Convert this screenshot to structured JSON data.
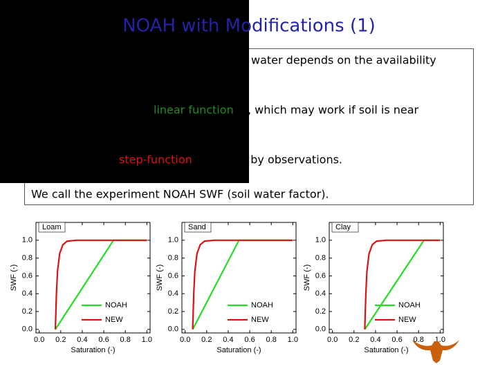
{
  "slide": {
    "title": "NOAH with Modifications (1)",
    "text": [
      {
        "text": "water depends on the availability",
        "color": "#000000"
      },
      {
        "text": "linear function",
        "color": "#1e8c1e"
      },
      {
        "text": ", which may work if soil is near",
        "color": "#000000"
      },
      {
        "text": "step-function",
        "color": "#e01010"
      },
      {
        "text": "d by observations.",
        "color": "#000000"
      },
      {
        "text": "We call the experiment NOAH SWF (soil water factor).",
        "color": "#000000"
      }
    ]
  },
  "chart_data": [
    {
      "type": "line",
      "label": "Loam",
      "xlabel": "Saturation (-)",
      "ylabel": "SWF (-)",
      "xlim": [
        -0.03,
        1.03
      ],
      "ylim": [
        -0.04,
        1.2
      ],
      "xticks": [
        {
          "value": 0,
          "label": "0.0"
        },
        {
          "value": 0.2,
          "label": "0.2"
        },
        {
          "value": 0.4,
          "label": "0.4"
        },
        {
          "value": 0.6,
          "label": "0.6"
        },
        {
          "value": 0.8,
          "label": "0.8"
        },
        {
          "value": 1,
          "label": "1.0"
        }
      ],
      "yticks": [
        {
          "value": 0,
          "label": "0.0"
        },
        {
          "value": 0.2,
          "label": "0.2"
        },
        {
          "value": 0.4,
          "label": "0.4"
        },
        {
          "value": 0.6,
          "label": "0.6"
        },
        {
          "value": 0.8,
          "label": "0.8"
        },
        {
          "value": 1,
          "label": "1.0"
        }
      ],
      "legend": "lower right",
      "series": [
        {
          "name": "NOAH",
          "color": "#22dd22",
          "x": [
            0.15,
            0.69,
            1.0
          ],
          "values": [
            0,
            1,
            1
          ]
        },
        {
          "name": "NEW",
          "color": "#dd1111",
          "x": [
            0.15,
            0.16,
            0.17,
            0.19,
            0.22,
            0.26,
            0.35,
            1.0
          ],
          "values": [
            0,
            0.4,
            0.65,
            0.85,
            0.95,
            0.99,
            1,
            1
          ]
        }
      ]
    },
    {
      "type": "line",
      "label": "Sand",
      "xlabel": "Saturation (-)",
      "ylabel": "SWF (-)",
      "xlim": [
        -0.03,
        1.03
      ],
      "ylim": [
        -0.04,
        1.2
      ],
      "xticks": [
        {
          "value": 0,
          "label": "0.0"
        },
        {
          "value": 0.2,
          "label": "0.2"
        },
        {
          "value": 0.4,
          "label": "0.4"
        },
        {
          "value": 0.6,
          "label": "0.6"
        },
        {
          "value": 0.8,
          "label": "0.8"
        },
        {
          "value": 1,
          "label": "1.0"
        }
      ],
      "yticks": [
        {
          "value": 0,
          "label": "0.0"
        },
        {
          "value": 0.2,
          "label": "0.2"
        },
        {
          "value": 0.4,
          "label": "0.4"
        },
        {
          "value": 0.6,
          "label": "0.6"
        },
        {
          "value": 0.8,
          "label": "0.8"
        },
        {
          "value": 1,
          "label": "1.0"
        }
      ],
      "legend": "lower right",
      "series": [
        {
          "name": "NOAH",
          "color": "#22dd22",
          "x": [
            0.07,
            0.5,
            1.0
          ],
          "values": [
            0,
            1,
            1
          ]
        },
        {
          "name": "NEW",
          "color": "#dd1111",
          "x": [
            0.07,
            0.08,
            0.09,
            0.11,
            0.14,
            0.18,
            0.27,
            1.0
          ],
          "values": [
            0,
            0.4,
            0.65,
            0.85,
            0.95,
            0.99,
            1,
            1
          ]
        }
      ]
    },
    {
      "type": "line",
      "label": "Clay",
      "xlabel": "Saturation (-)",
      "ylabel": "SWF (-)",
      "xlim": [
        -0.03,
        1.03
      ],
      "ylim": [
        -0.04,
        1.2
      ],
      "xticks": [
        {
          "value": 0,
          "label": "0.0"
        },
        {
          "value": 0.2,
          "label": "0.2"
        },
        {
          "value": 0.4,
          "label": "0.4"
        },
        {
          "value": 0.6,
          "label": "0.6"
        },
        {
          "value": 0.8,
          "label": "0.8"
        },
        {
          "value": 1,
          "label": "1.0"
        }
      ],
      "yticks": [
        {
          "value": 0,
          "label": "0.0"
        },
        {
          "value": 0.2,
          "label": "0.2"
        },
        {
          "value": 0.4,
          "label": "0.4"
        },
        {
          "value": 0.6,
          "label": "0.6"
        },
        {
          "value": 0.8,
          "label": "0.8"
        },
        {
          "value": 1,
          "label": "1.0"
        }
      ],
      "legend": "lower right",
      "series": [
        {
          "name": "NOAH",
          "color": "#22dd22",
          "x": [
            0.3,
            0.85,
            1.0
          ],
          "values": [
            0,
            1,
            1
          ]
        },
        {
          "name": "NEW",
          "color": "#dd1111",
          "x": [
            0.3,
            0.31,
            0.32,
            0.34,
            0.37,
            0.41,
            0.5,
            1.0
          ],
          "values": [
            0,
            0.4,
            0.65,
            0.85,
            0.95,
            0.99,
            1,
            1
          ]
        }
      ]
    }
  ]
}
